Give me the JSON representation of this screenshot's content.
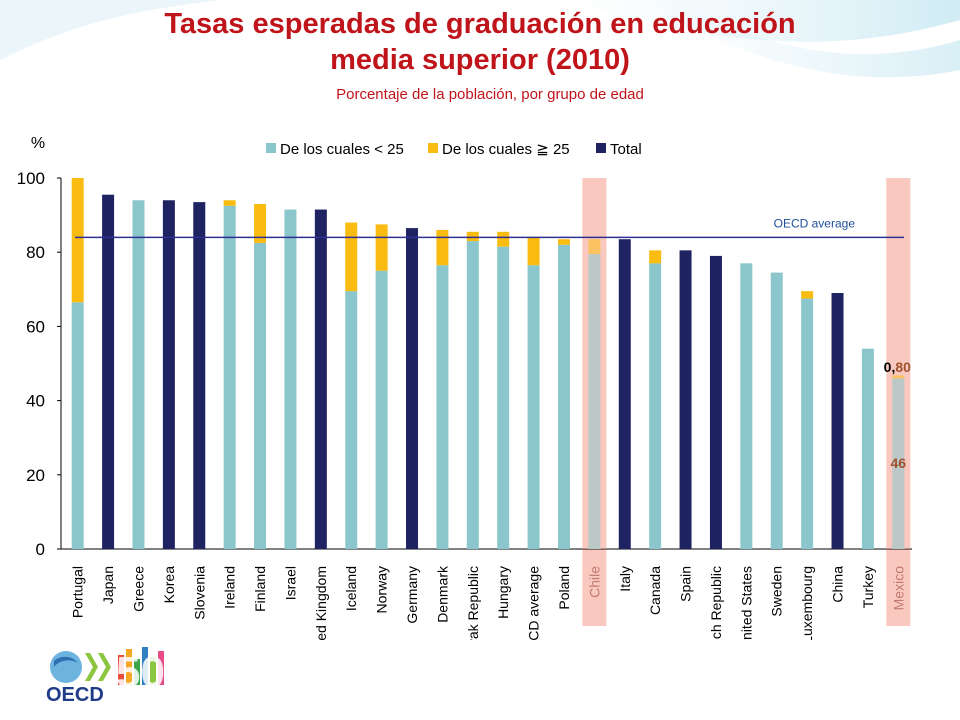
{
  "title_line1": "Tasas esperadas de graduación en educación",
  "title_line2": "media superior (2010)",
  "subtitle": "Porcentaje de la población, por grupo de edad",
  "logo": {
    "text": "OECD",
    "anniversary": "50"
  },
  "colors": {
    "under25": "#8ac6cb",
    "over25": "#fbbc12",
    "total": "#1f2362",
    "highlight": "#f9c9c0",
    "oecd_line": "#2e3192",
    "annotation": "#a0522d",
    "title": "#c0141b"
  },
  "chart_data": {
    "type": "bar",
    "ylabel": "%",
    "ylim": [
      0,
      100
    ],
    "yticks": [
      0,
      20,
      40,
      60,
      80,
      100
    ],
    "legend": [
      {
        "key": "under25",
        "label": "De los cuales < 25"
      },
      {
        "key": "over25",
        "label": "De los cuales ≧ 25"
      },
      {
        "key": "total",
        "label": "Total"
      }
    ],
    "legend_position": "top",
    "reference_line": {
      "label": "OECD average",
      "value": 84
    },
    "highlighted": [
      "Chile",
      "Mexico"
    ],
    "categories": [
      "Portugal",
      "Japan",
      "Greece",
      "Korea",
      "Slovenia",
      "Ireland",
      "Finland",
      "Israel",
      "United Kingdom",
      "Iceland",
      "Norway",
      "Germany",
      "Denmark",
      "Slovak Republic",
      "Hungary",
      "OECD average",
      "Poland",
      "Chile",
      "Italy",
      "Canada",
      "Spain",
      "Czech Republic",
      "United States",
      "Sweden",
      "Luxembourg",
      "China",
      "Turkey",
      "Mexico"
    ],
    "bars": [
      {
        "category": "Portugal",
        "under25": 66.5,
        "over25": 33.5
      },
      {
        "category": "Japan",
        "total": 95.5
      },
      {
        "category": "Greece",
        "under25": 94
      },
      {
        "category": "Korea",
        "total": 94
      },
      {
        "category": "Slovenia",
        "total": 93.5
      },
      {
        "category": "Ireland",
        "under25": 92.5,
        "over25": 1.5
      },
      {
        "category": "Finland",
        "under25": 82.5,
        "over25": 10.5
      },
      {
        "category": "Israel",
        "under25": 91.5
      },
      {
        "category": "United Kingdom",
        "total": 91.5
      },
      {
        "category": "Iceland",
        "under25": 69.5,
        "over25": 18.5
      },
      {
        "category": "Norway",
        "under25": 75,
        "over25": 12.5
      },
      {
        "category": "Germany",
        "total": 86.5
      },
      {
        "category": "Denmark",
        "under25": 76.5,
        "over25": 9.5
      },
      {
        "category": "Slovak Republic",
        "under25": 83,
        "over25": 2.5
      },
      {
        "category": "Hungary",
        "under25": 81.5,
        "over25": 4
      },
      {
        "category": "OECD average",
        "under25": 76.5,
        "over25": 7.5
      },
      {
        "category": "Poland",
        "under25": 82,
        "over25": 1.5
      },
      {
        "category": "Chile",
        "under25": 79.5,
        "over25": 4
      },
      {
        "category": "Italy",
        "total": 83.5
      },
      {
        "category": "Canada",
        "under25": 77,
        "over25": 3.5
      },
      {
        "category": "Spain",
        "total": 80.5
      },
      {
        "category": "Czech Republic",
        "total": 79
      },
      {
        "category": "United States",
        "under25": 77
      },
      {
        "category": "Sweden",
        "under25": 74.5
      },
      {
        "category": "Luxembourg",
        "under25": 67.5,
        "over25": 2
      },
      {
        "category": "China",
        "total": 69
      },
      {
        "category": "Turkey",
        "under25": 54
      },
      {
        "category": "Mexico",
        "under25": 46,
        "over25": 0.8
      }
    ],
    "annotations": [
      {
        "category": "Mexico",
        "text": "0,80",
        "series": "over25",
        "part1": "0,",
        "part2": "80"
      },
      {
        "category": "Mexico",
        "text": "46",
        "series": "under25"
      }
    ]
  }
}
